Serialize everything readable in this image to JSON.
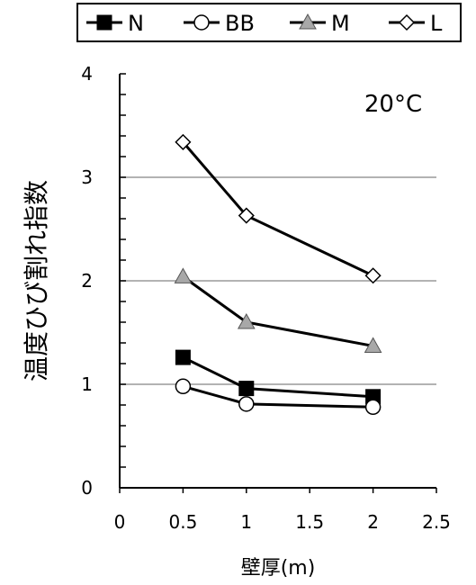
{
  "chart_data": {
    "type": "line",
    "title": "20°C",
    "xlabel": "壁厚(m)",
    "ylabel": "温度ひび割れ指数",
    "xlim": [
      0,
      2.5
    ],
    "ylim": [
      0,
      4
    ],
    "x_ticks": [
      0,
      0.5,
      1,
      1.5,
      2,
      2.5
    ],
    "x_tick_labels": [
      "0",
      "0.5",
      "1",
      "1.5",
      "2",
      "2.5"
    ],
    "y_ticks": [
      0,
      1,
      2,
      3,
      4
    ],
    "y_tick_labels": [
      "0",
      "1",
      "2",
      "3",
      "4"
    ],
    "grid": "horizontal major lines at 1, 2, 3",
    "legend_position": "top",
    "series": [
      {
        "name": "N",
        "marker": "square-filled",
        "color": "#000000",
        "x": [
          0.5,
          1,
          2
        ],
        "y": [
          1.26,
          0.96,
          0.88
        ]
      },
      {
        "name": "BB",
        "marker": "circle-open",
        "color": "#000000",
        "x": [
          0.5,
          1,
          2
        ],
        "y": [
          0.98,
          0.81,
          0.78
        ]
      },
      {
        "name": "M",
        "marker": "triangle-gray",
        "color": "#9a9a9a",
        "x": [
          0.5,
          1,
          2
        ],
        "y": [
          2.04,
          1.6,
          1.37
        ]
      },
      {
        "name": "L",
        "marker": "diamond-open",
        "color": "#000000",
        "x": [
          0.5,
          1,
          2
        ],
        "y": [
          3.34,
          2.63,
          2.05
        ]
      }
    ]
  }
}
